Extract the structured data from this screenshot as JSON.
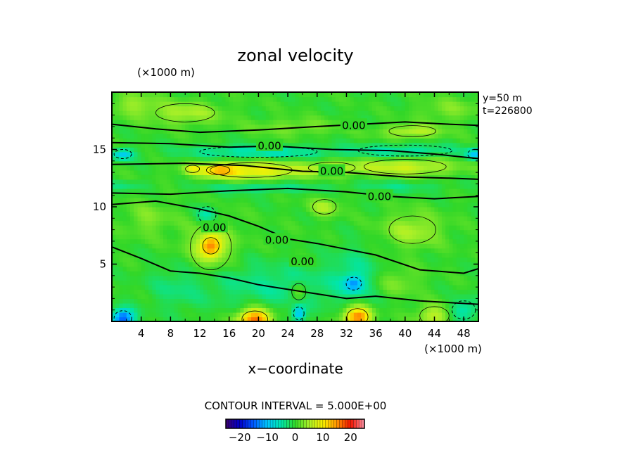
{
  "chart_data": {
    "type": "heatmap",
    "title": "zonal velocity",
    "xlabel": "x−coordinate",
    "x_unit": "(×1000 m)",
    "y_unit": "(×1000 m)",
    "x_ticks": [
      "4",
      "8",
      "12",
      "16",
      "20",
      "24",
      "28",
      "32",
      "36",
      "40",
      "44",
      "48"
    ],
    "y_ticks": [
      "5",
      "10",
      "15"
    ],
    "xlim": [
      0,
      50
    ],
    "ylim": [
      0,
      20
    ],
    "info": [
      "y=50  m",
      "t=226800"
    ],
    "contour_interval_text": "CONTOUR INTERVAL = 5.000E+00",
    "contour_interval": 5,
    "contour_labels": [
      {
        "text": "0.00",
        "x": 33,
        "y": 17.1
      },
      {
        "text": "0.00",
        "x": 21.5,
        "y": 15.3
      },
      {
        "text": "0.00",
        "x": 30,
        "y": 13.1
      },
      {
        "text": "0.00",
        "x": 36.5,
        "y": 10.9
      },
      {
        "text": "0.00",
        "x": 14,
        "y": 8.2
      },
      {
        "text": "0.00",
        "x": 22.5,
        "y": 7.1
      },
      {
        "text": "0.00",
        "x": 26,
        "y": 5.2
      }
    ],
    "colorbar": {
      "ticks": [
        "−20",
        "−10",
        "0",
        "10",
        "20"
      ],
      "range": [
        -25,
        25
      ]
    },
    "features": [
      {
        "x": 19,
        "y": 13.2,
        "v": 10,
        "sx": 7,
        "sy": 0.8
      },
      {
        "x": 14.5,
        "y": 13.2,
        "v": 8,
        "sx": 2,
        "sy": 0.5
      },
      {
        "x": 11,
        "y": 13.3,
        "v": 6,
        "sx": 1.2,
        "sy": 0.4
      },
      {
        "x": 40,
        "y": 13.5,
        "v": 7,
        "sx": 7,
        "sy": 0.8
      },
      {
        "x": 30,
        "y": 13.4,
        "v": 5,
        "sx": 4,
        "sy": 0.6
      },
      {
        "x": 20,
        "y": 14.8,
        "v": -6,
        "sx": 10,
        "sy": 0.6
      },
      {
        "x": 40,
        "y": 14.9,
        "v": -5,
        "sx": 8,
        "sy": 0.6
      },
      {
        "x": 1.5,
        "y": 14.6,
        "v": -9,
        "sx": 1.5,
        "sy": 0.5
      },
      {
        "x": 49.5,
        "y": 14.6,
        "v": -9,
        "sx": 1.2,
        "sy": 0.5
      },
      {
        "x": 41,
        "y": 16.6,
        "v": 6,
        "sx": 4,
        "sy": 0.6
      },
      {
        "x": 25,
        "y": 17,
        "v": 3,
        "sx": 6,
        "sy": 0.7
      },
      {
        "x": 10,
        "y": 18.2,
        "v": 5,
        "sx": 5,
        "sy": 1
      },
      {
        "x": 3,
        "y": 19,
        "v": 4,
        "sx": 3,
        "sy": 1
      },
      {
        "x": 46,
        "y": 18.5,
        "v": 3,
        "sx": 4,
        "sy": 1
      },
      {
        "x": 20,
        "y": 11.7,
        "v": -4,
        "sx": 8,
        "sy": 0.5
      },
      {
        "x": 39,
        "y": 11.8,
        "v": -3,
        "sx": 7,
        "sy": 0.5
      },
      {
        "x": 2,
        "y": 11.9,
        "v": -3,
        "sx": 3,
        "sy": 0.4
      },
      {
        "x": 29,
        "y": 10,
        "v": 5,
        "sx": 2,
        "sy": 0.8
      },
      {
        "x": 41,
        "y": 8,
        "v": 5,
        "sx": 4,
        "sy": 1.5
      },
      {
        "x": 13.5,
        "y": 6.6,
        "v": 12,
        "sx": 1.4,
        "sy": 0.9
      },
      {
        "x": 13.5,
        "y": 6.5,
        "v": 5,
        "sx": 3.5,
        "sy": 2.5
      },
      {
        "x": 13,
        "y": 9.3,
        "v": -6,
        "sx": 1.5,
        "sy": 0.9
      },
      {
        "x": 5,
        "y": 9,
        "v": 3,
        "sx": 3,
        "sy": 1.5
      },
      {
        "x": 33,
        "y": 3.3,
        "v": -9,
        "sx": 1.3,
        "sy": 0.7
      },
      {
        "x": 33,
        "y": 4,
        "v": -4,
        "sx": 3.5,
        "sy": 2.5
      },
      {
        "x": 25,
        "y": 3,
        "v": -4,
        "sx": 5,
        "sy": 1.8
      },
      {
        "x": 17,
        "y": 3.5,
        "v": -3,
        "sx": 5,
        "sy": 2
      },
      {
        "x": 9,
        "y": 3,
        "v": -3,
        "sx": 4,
        "sy": 2
      },
      {
        "x": 25.5,
        "y": 2.6,
        "v": 6,
        "sx": 1.2,
        "sy": 0.9
      },
      {
        "x": 33.5,
        "y": 0.4,
        "v": 17,
        "sx": 1.8,
        "sy": 0.9
      },
      {
        "x": 19.5,
        "y": 0.2,
        "v": 17,
        "sx": 2.2,
        "sy": 0.9
      },
      {
        "x": 44,
        "y": 0.5,
        "v": 6,
        "sx": 2.5,
        "sy": 1
      },
      {
        "x": 25.5,
        "y": 0.7,
        "v": -10,
        "sx": 0.9,
        "sy": 0.7
      },
      {
        "x": 1.5,
        "y": 0.3,
        "v": -16,
        "sx": 1.5,
        "sy": 0.8
      },
      {
        "x": 48,
        "y": 1,
        "v": -6,
        "sx": 2,
        "sy": 1
      },
      {
        "x": 39,
        "y": 3.5,
        "v": 3,
        "sx": 3,
        "sy": 1.2
      }
    ]
  }
}
